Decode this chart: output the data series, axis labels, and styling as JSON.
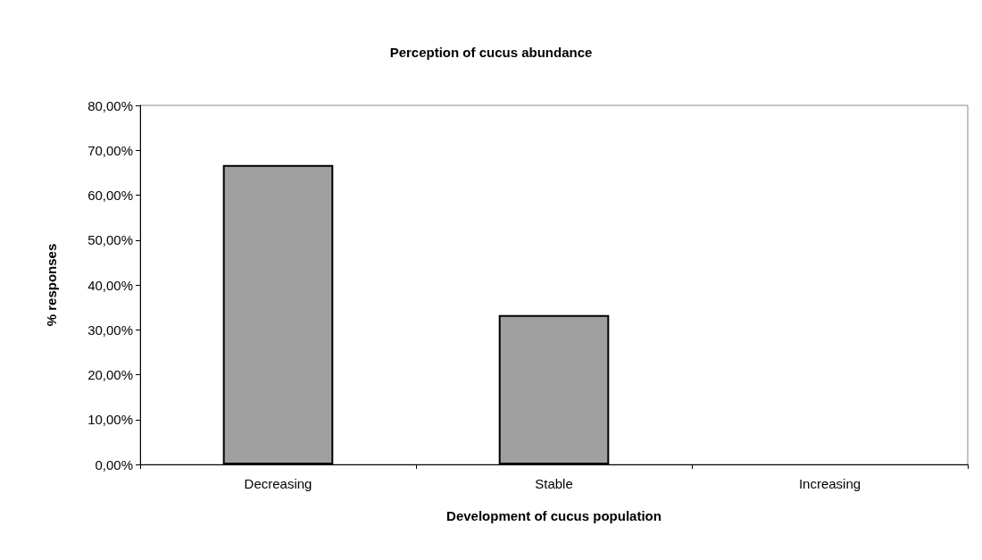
{
  "chart_data": {
    "type": "bar",
    "title": "Perception of cucus abundance",
    "xlabel": "Development of cucus population",
    "ylabel": "% responses",
    "categories": [
      "Decreasing",
      "Stable",
      "Increasing"
    ],
    "values": [
      66.7,
      33.3,
      0
    ],
    "color": "#a0a0a0",
    "ylim": [
      0,
      80
    ],
    "yticks": [
      {
        "value": 0,
        "label": "0,00%"
      },
      {
        "value": 10,
        "label": "10,00%"
      },
      {
        "value": 20,
        "label": "20,00%"
      },
      {
        "value": 30,
        "label": "30,00%"
      },
      {
        "value": 40,
        "label": "40,00%"
      },
      {
        "value": 50,
        "label": "50,00%"
      },
      {
        "value": 60,
        "label": "60,00%"
      },
      {
        "value": 70,
        "label": "70,00%"
      },
      {
        "value": 80,
        "label": "80,00%"
      }
    ],
    "grid": false
  }
}
